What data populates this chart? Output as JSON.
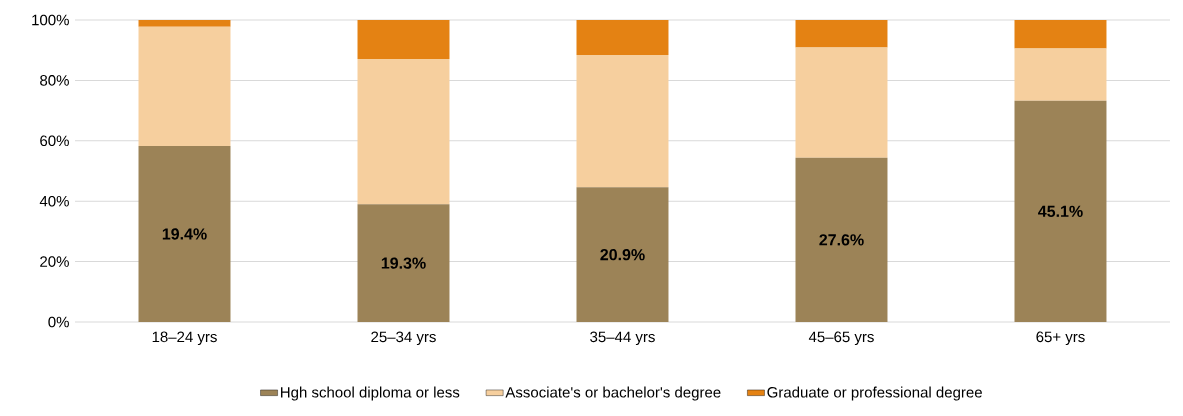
{
  "chart_data": {
    "type": "bar",
    "stacked": true,
    "categories": [
      "18–24 yrs",
      "25–34 yrs",
      "35–44 yrs",
      "45–65 yrs",
      "65+ yrs"
    ],
    "series": [
      {
        "name": "Hgh school diploma or less",
        "color": "#9c8357",
        "values": [
          58.3,
          39.0,
          44.6,
          54.4,
          73.3
        ]
      },
      {
        "name": "Associate's or bachelor's degree",
        "color": "#f6cf9e",
        "values": [
          39.5,
          48.1,
          43.8,
          36.5,
          17.3
        ]
      },
      {
        "name": "Graduate or professional degree",
        "color": "#e48213",
        "values": [
          2.2,
          12.9,
          11.6,
          9.1,
          9.4
        ]
      }
    ],
    "ylim": [
      0,
      100
    ],
    "yticks": [
      {
        "value": 0,
        "label": "0%"
      },
      {
        "value": 20,
        "label": "20%"
      },
      {
        "value": 40,
        "label": "40%"
      },
      {
        "value": 60,
        "label": "60%"
      },
      {
        "value": 80,
        "label": "80%"
      },
      {
        "value": 100,
        "label": "100%"
      }
    ],
    "annotations": [
      "19.4%",
      "19.3%",
      "20.9%",
      "27.6%",
      "45.1%"
    ],
    "grid": "y",
    "legend": "bottom"
  }
}
